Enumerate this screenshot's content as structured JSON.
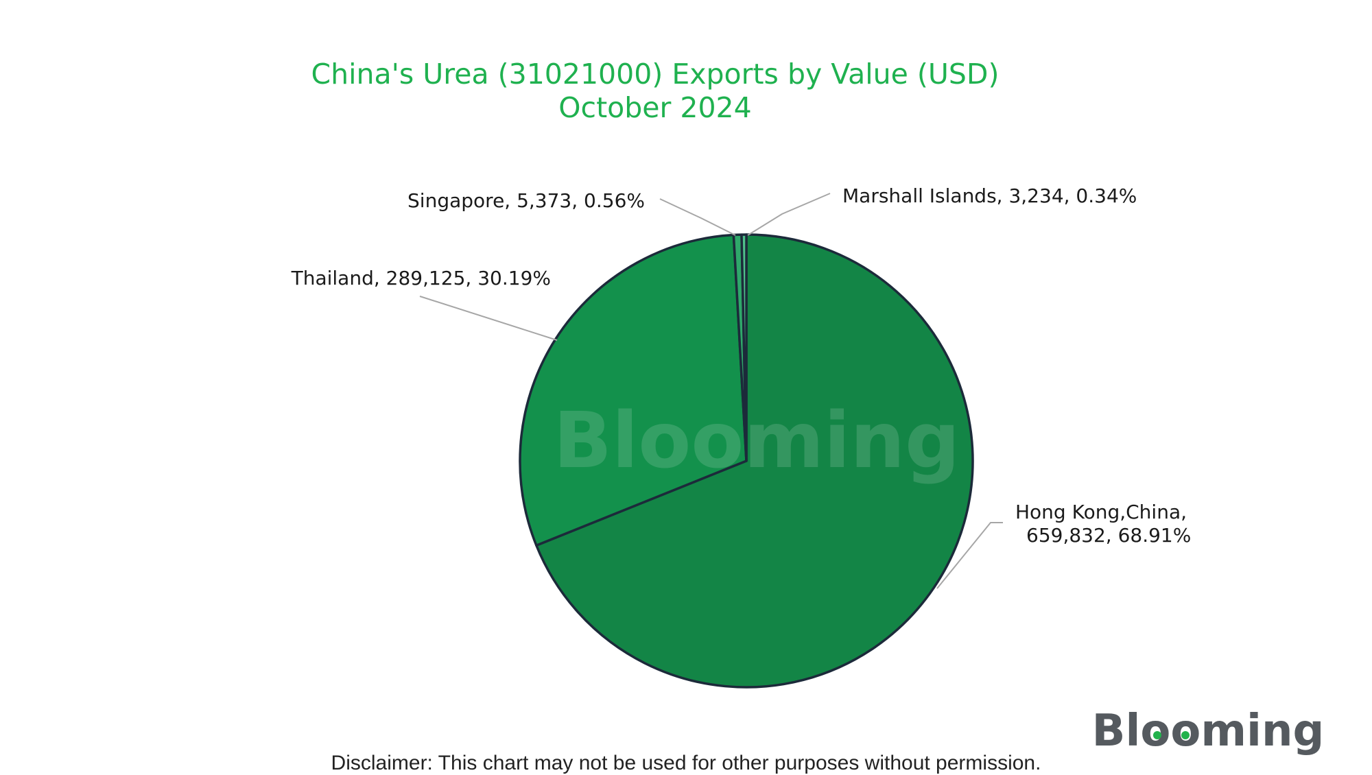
{
  "chart_data": {
    "type": "pie",
    "title": "China's Urea (31021000) Exports by Value (USD)",
    "subtitle": "October 2024",
    "slices": [
      {
        "name": "Hong Kong,China",
        "value": 659832,
        "value_label": "659,832",
        "percent_label": "68.91%",
        "color": "#138546"
      },
      {
        "name": "Thailand",
        "value": 289125,
        "value_label": "289,125",
        "percent_label": "30.19%",
        "color": "#13914c"
      },
      {
        "name": "Singapore",
        "value": 5373,
        "value_label": "5,373",
        "percent_label": "0.56%",
        "color": "#2fa86a"
      },
      {
        "name": "Marshall Islands",
        "value": 3234,
        "value_label": "3,234",
        "percent_label": "0.34%",
        "color": "#4fc08a"
      }
    ],
    "outline_color": "#1c2a3a",
    "leader_color": "#a6a6a6",
    "title_color": "#1fb14f"
  },
  "watermark": {
    "text": "Blooming"
  },
  "logo": {
    "text": "Blooming",
    "color": "#555a5f",
    "accent_color": "#22b24c"
  },
  "disclaimer": "Disclaimer: This chart may not be used for other purposes without permission."
}
